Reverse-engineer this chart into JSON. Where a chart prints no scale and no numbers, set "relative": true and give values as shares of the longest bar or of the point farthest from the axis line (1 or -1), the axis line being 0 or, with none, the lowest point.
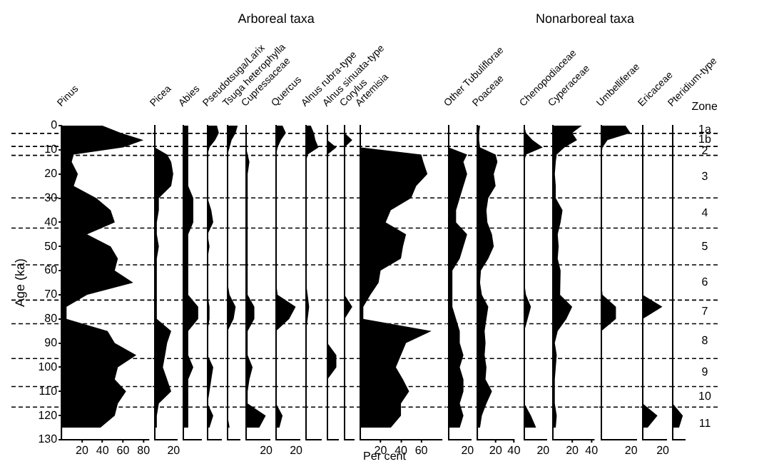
{
  "chart_data": [
    {
      "type": "area",
      "orientation": "horizontal",
      "title": "Pinus",
      "ylabel": "Age (ka)",
      "color": "#000000",
      "xlim": [
        0,
        85
      ],
      "xticks": [
        20,
        40,
        60,
        80
      ],
      "ylim": [
        130,
        0
      ],
      "yticks": [
        0,
        10,
        20,
        30,
        40,
        50,
        60,
        70,
        80,
        90,
        100,
        110,
        120,
        130
      ],
      "annotations": [
        "Arboreal taxa",
        "Nonarboreal taxa",
        "Zone"
      ],
      "ref_lines": [
        {
          "axis": "y",
          "value": 3.2,
          "line_style": "dashed"
        },
        {
          "axis": "y",
          "value": 8.6,
          "line_style": "dashed"
        },
        {
          "axis": "y",
          "value": 12.3,
          "line_style": "dashed"
        },
        {
          "axis": "y",
          "value": 29.9,
          "line_style": "dashed"
        },
        {
          "axis": "y",
          "value": 42.4,
          "line_style": "dashed"
        },
        {
          "axis": "y",
          "value": 57.6,
          "line_style": "dashed"
        },
        {
          "axis": "y",
          "value": 72.2,
          "line_style": "dashed"
        },
        {
          "axis": "y",
          "value": 82,
          "line_style": "dashed"
        },
        {
          "axis": "y",
          "value": 96.4,
          "line_style": "dashed"
        },
        {
          "axis": "y",
          "value": 108,
          "line_style": "dashed"
        },
        {
          "axis": "y",
          "value": 116.5,
          "line_style": "dashed"
        }
      ],
      "x": [
        0,
        3,
        6,
        9,
        12,
        15,
        20,
        25,
        30,
        35,
        40,
        45,
        50,
        55,
        60,
        65,
        70,
        75,
        80,
        85,
        90,
        95,
        100,
        105,
        110,
        115,
        120,
        125
      ],
      "values": [
        40,
        58,
        80,
        60,
        12,
        10,
        16,
        12,
        34,
        48,
        52,
        25,
        48,
        55,
        52,
        70,
        25,
        5,
        5,
        45,
        52,
        73,
        55,
        52,
        63,
        55,
        52,
        38
      ]
    },
    {
      "type": "area",
      "orientation": "horizontal",
      "title": "Picea",
      "color": "#000000",
      "relative": true,
      "ylim": [
        130,
        0
      ],
      "tick_labels": false,
      "annotations": [
        "20"
      ],
      "x": [
        0,
        3,
        6,
        9,
        12,
        15,
        20,
        25,
        30,
        35,
        40,
        45,
        50,
        55,
        60,
        65,
        70,
        75,
        80,
        85,
        90,
        95,
        100,
        105,
        110,
        115,
        120,
        125
      ],
      "values": [
        0,
        0,
        0,
        0,
        0.67,
        0.89,
        1,
        0.89,
        0.22,
        0.22,
        0.11,
        0.11,
        0.22,
        0.11,
        0.11,
        0.11,
        0.11,
        0.11,
        0.11,
        0.89,
        0.67,
        0.56,
        0.44,
        0.67,
        0.89,
        0.22,
        0.11,
        0.11
      ]
    },
    {
      "type": "area",
      "orientation": "horizontal",
      "title": "Abies",
      "color": "#000000",
      "relative": true,
      "ylim": [
        130,
        0
      ],
      "tick_labels": false,
      "x": [
        0,
        3,
        6,
        9,
        12,
        15,
        20,
        25,
        30,
        35,
        40,
        45,
        50,
        55,
        60,
        65,
        70,
        75,
        80,
        85,
        90,
        95,
        100,
        105,
        110,
        115,
        120,
        125
      ],
      "values": [
        0.33,
        0.33,
        0.33,
        0.33,
        0.33,
        0.33,
        0.33,
        0.33,
        0.67,
        0.67,
        0.67,
        0.33,
        0.33,
        0.33,
        0.33,
        0.33,
        0.33,
        1,
        1,
        0.33,
        0.33,
        0.33,
        0.67,
        0.33,
        0.33,
        0.33,
        0.33,
        0.33
      ]
    },
    {
      "type": "area",
      "orientation": "horizontal",
      "title": "Pseudotsuga/Larix",
      "color": "#000000",
      "relative": true,
      "ylim": [
        130,
        0
      ],
      "tick_labels": false,
      "x": [
        0,
        3,
        6,
        9,
        12,
        15,
        20,
        25,
        30,
        35,
        40,
        45,
        50,
        55,
        60,
        65,
        70,
        75,
        80,
        85,
        90,
        95,
        100,
        105,
        110,
        115,
        120,
        125
      ],
      "values": [
        0.83,
        1,
        0.67,
        0.17,
        0,
        0,
        0,
        0,
        0,
        0.33,
        0.5,
        0,
        0.17,
        0,
        0,
        0,
        0,
        0.17,
        0.17,
        0,
        0,
        0,
        0.5,
        0.33,
        0.17,
        0,
        0.5,
        0.17
      ]
    },
    {
      "type": "area",
      "orientation": "horizontal",
      "title": "Tsuga heterophylla",
      "color": "#000000",
      "relative": true,
      "ylim": [
        130,
        0
      ],
      "tick_labels": false,
      "x": [
        0,
        3,
        6,
        9,
        12,
        15,
        20,
        25,
        30,
        35,
        40,
        45,
        50,
        55,
        60,
        65,
        70,
        75,
        80,
        85,
        90,
        95,
        100,
        105,
        110,
        115,
        120,
        125
      ],
      "values": [
        1,
        0.8,
        0.4,
        0.2,
        0,
        0,
        0,
        0,
        0,
        0,
        0,
        0,
        0,
        0,
        0,
        0,
        0.2,
        0.8,
        0.6,
        0,
        0,
        0,
        0,
        0,
        0,
        0,
        0,
        0.2
      ]
    },
    {
      "type": "area",
      "orientation": "horizontal",
      "title": "Cupressaceae",
      "color": "#000000",
      "relative": true,
      "ylim": [
        130,
        0
      ],
      "tick_labels": false,
      "annotations": [
        "20"
      ],
      "x": [
        0,
        3,
        6,
        9,
        12,
        15,
        20,
        25,
        30,
        35,
        40,
        45,
        50,
        55,
        60,
        65,
        70,
        75,
        80,
        85,
        90,
        95,
        100,
        105,
        110,
        115,
        120,
        125
      ],
      "values": [
        0,
        0,
        0,
        0,
        0.08,
        0.17,
        0.08,
        0.08,
        0.08,
        0.08,
        0.08,
        0.08,
        0.08,
        0.08,
        0.08,
        0.08,
        0.08,
        0.42,
        0.42,
        0.08,
        0.08,
        0.08,
        0.33,
        0.17,
        0.08,
        0.08,
        1,
        0.67
      ]
    },
    {
      "type": "area",
      "orientation": "horizontal",
      "title": "Quercus",
      "color": "#000000",
      "relative": true,
      "ylim": [
        130,
        0
      ],
      "tick_labels": false,
      "annotations": [
        "20"
      ],
      "x": [
        0,
        3,
        6,
        9,
        12,
        15,
        20,
        25,
        30,
        35,
        40,
        45,
        50,
        55,
        60,
        65,
        70,
        75,
        80,
        85,
        90,
        95,
        100,
        105,
        110,
        115,
        120,
        125
      ],
      "values": [
        0.33,
        0.5,
        0.25,
        0.08,
        0,
        0,
        0,
        0,
        0,
        0,
        0,
        0,
        0,
        0,
        0,
        0,
        0.08,
        1,
        0.67,
        0,
        0,
        0,
        0,
        0,
        0,
        0,
        0.33,
        0.17
      ]
    },
    {
      "type": "area",
      "orientation": "horizontal",
      "title": "Alnus rubra-type",
      "color": "#000000",
      "relative": true,
      "ylim": [
        130,
        0
      ],
      "tick_labels": false,
      "x": [
        0,
        3,
        6,
        9,
        12,
        15,
        20,
        25,
        30,
        35,
        40,
        45,
        50,
        55,
        60,
        65,
        70,
        75,
        80,
        85,
        90,
        95,
        100,
        105,
        110,
        115,
        120,
        125
      ],
      "values": [
        0.38,
        0.63,
        0.75,
        1,
        0.13,
        0,
        0,
        0,
        0,
        0,
        0,
        0,
        0,
        0,
        0,
        0,
        0.13,
        0.25,
        0.13,
        0,
        0,
        0,
        0,
        0,
        0,
        0,
        0,
        0
      ]
    },
    {
      "type": "area",
      "orientation": "horizontal",
      "title": "Alnus sinuata-type",
      "color": "#000000",
      "relative": true,
      "ylim": [
        130,
        0
      ],
      "tick_labels": false,
      "x": [
        0,
        3,
        6,
        9,
        12,
        15,
        20,
        25,
        30,
        35,
        40,
        45,
        50,
        55,
        60,
        65,
        70,
        75,
        80,
        85,
        90,
        95,
        100,
        105,
        110,
        115,
        120,
        125
      ],
      "values": [
        0,
        0,
        0,
        1,
        0,
        0,
        0,
        0,
        0,
        0,
        0,
        0,
        0,
        0,
        0,
        0,
        0,
        0,
        0,
        0,
        0,
        1,
        1,
        0,
        0,
        0,
        0,
        0
      ]
    },
    {
      "type": "area",
      "orientation": "horizontal",
      "title": "Corylus",
      "color": "#000000",
      "relative": true,
      "ylim": [
        130,
        0
      ],
      "tick_labels": false,
      "x": [
        0,
        3,
        6,
        9,
        12,
        15,
        20,
        25,
        30,
        35,
        40,
        45,
        50,
        55,
        60,
        65,
        70,
        75,
        80,
        85,
        90,
        95,
        100,
        105,
        110,
        115,
        120,
        125
      ],
      "values": [
        0,
        0,
        1,
        0,
        0,
        0,
        0,
        0,
        0,
        0,
        0,
        0,
        0,
        0,
        0,
        0,
        0,
        1,
        0,
        0,
        0,
        0,
        0,
        0,
        0,
        0,
        0,
        0
      ]
    },
    {
      "type": "area",
      "orientation": "horizontal",
      "title": "Artemisia",
      "xlabel": "Per cent",
      "color": "#000000",
      "xlim": [
        0,
        80
      ],
      "xticks": [
        20,
        40,
        60
      ],
      "ylim": [
        130,
        0
      ],
      "tick_labels": "x",
      "x": [
        0,
        3,
        6,
        9,
        12,
        15,
        20,
        25,
        30,
        35,
        40,
        45,
        50,
        55,
        60,
        65,
        70,
        75,
        80,
        85,
        90,
        95,
        100,
        105,
        110,
        115,
        120,
        125
      ],
      "values": [
        0,
        0,
        0,
        0,
        60,
        62,
        66,
        55,
        50,
        30,
        25,
        45,
        42,
        40,
        20,
        18,
        10,
        3,
        3,
        70,
        45,
        40,
        35,
        42,
        48,
        40,
        40,
        30
      ]
    },
    {
      "type": "area",
      "orientation": "horizontal",
      "title": "Other Tubuliflorae",
      "color": "#000000",
      "relative": true,
      "ylim": [
        130,
        0
      ],
      "tick_labels": false,
      "annotations": [
        "20"
      ],
      "x": [
        0,
        3,
        6,
        9,
        12,
        15,
        20,
        25,
        30,
        35,
        40,
        45,
        50,
        55,
        60,
        65,
        70,
        75,
        80,
        85,
        90,
        95,
        100,
        105,
        110,
        115,
        120,
        125
      ],
      "values": [
        0,
        0,
        0,
        0,
        1,
        0.8,
        1,
        0.8,
        0.6,
        0.4,
        0.4,
        1,
        0.8,
        0.6,
        0.2,
        0.2,
        0.2,
        0.2,
        0.4,
        0.6,
        0.6,
        0.8,
        0.6,
        0.8,
        0.8,
        0.6,
        0.8,
        0.6
      ]
    },
    {
      "type": "area",
      "orientation": "horizontal",
      "title": "Poaceae",
      "color": "#000000",
      "xlim": [
        0,
        40
      ],
      "xticks": [
        20,
        40
      ],
      "ylim": [
        130,
        0
      ],
      "tick_labels": "x",
      "x": [
        0,
        3,
        6,
        9,
        12,
        15,
        20,
        25,
        30,
        35,
        40,
        45,
        50,
        55,
        60,
        65,
        70,
        75,
        80,
        85,
        90,
        95,
        100,
        105,
        110,
        115,
        120,
        125
      ],
      "values": [
        3,
        2,
        2,
        3,
        20,
        22,
        18,
        20,
        12,
        10,
        11,
        16,
        18,
        12,
        4,
        3,
        5,
        12,
        10,
        8,
        9,
        8,
        10,
        9,
        16,
        10,
        5,
        3
      ]
    },
    {
      "type": "area",
      "orientation": "horizontal",
      "title": "Chenopodiaceae",
      "color": "#000000",
      "relative": true,
      "ylim": [
        130,
        0
      ],
      "tick_labels": false,
      "annotations": [
        "20"
      ],
      "x": [
        0,
        3,
        6,
        9,
        12,
        15,
        20,
        25,
        30,
        35,
        40,
        45,
        50,
        55,
        60,
        65,
        70,
        75,
        80,
        85,
        90,
        95,
        100,
        105,
        110,
        115,
        120,
        125
      ],
      "values": [
        0,
        0.09,
        0.45,
        1,
        0.09,
        0,
        0,
        0,
        0,
        0,
        0,
        0,
        0,
        0,
        0,
        0,
        0.09,
        0.36,
        0.18,
        0,
        0,
        0,
        0,
        0,
        0,
        0,
        0.36,
        0.64
      ]
    },
    {
      "type": "area",
      "orientation": "horizontal",
      "title": "Cyperaceae",
      "color": "#000000",
      "xlim": [
        0,
        42
      ],
      "xticks": [
        20,
        40
      ],
      "ylim": [
        130,
        0
      ],
      "tick_labels": "x",
      "x": [
        0,
        3,
        6,
        9,
        12,
        15,
        20,
        25,
        30,
        35,
        40,
        45,
        50,
        55,
        60,
        65,
        70,
        75,
        80,
        85,
        90,
        95,
        100,
        105,
        110,
        115,
        120,
        125
      ],
      "values": [
        30,
        20,
        25,
        12,
        4,
        3,
        2,
        3,
        3,
        10,
        8,
        5,
        6,
        5,
        8,
        7,
        8,
        20,
        14,
        5,
        2,
        4,
        3,
        2,
        2,
        2,
        4,
        3
      ]
    },
    {
      "type": "area",
      "orientation": "horizontal",
      "title": "Umbelliferae",
      "color": "#000000",
      "relative": true,
      "ylim": [
        130,
        0
      ],
      "tick_labels": false,
      "annotations": [
        "20"
      ],
      "x": [
        0,
        3,
        6,
        9,
        12,
        15,
        20,
        25,
        30,
        35,
        40,
        45,
        50,
        55,
        60,
        65,
        70,
        75,
        80,
        85,
        90,
        95,
        100,
        105,
        110,
        115,
        120,
        125
      ],
      "values": [
        0.83,
        1,
        0.21,
        0.04,
        0,
        0,
        0,
        0,
        0,
        0,
        0,
        0,
        0,
        0,
        0,
        0,
        0.04,
        0.5,
        0.5,
        0,
        0,
        0,
        0,
        0,
        0,
        0,
        0,
        0
      ]
    },
    {
      "type": "area",
      "orientation": "horizontal",
      "title": "Ericaceae",
      "color": "#000000",
      "relative": true,
      "ylim": [
        130,
        0
      ],
      "tick_labels": false,
      "annotations": [
        "20"
      ],
      "x": [
        0,
        3,
        6,
        9,
        12,
        15,
        20,
        25,
        30,
        35,
        40,
        45,
        50,
        55,
        60,
        65,
        70,
        75,
        80,
        85,
        90,
        95,
        100,
        105,
        110,
        115,
        120,
        125
      ],
      "values": [
        0,
        0,
        0,
        0,
        0,
        0,
        0,
        0,
        0,
        0,
        0,
        0,
        0,
        0,
        0,
        0,
        0,
        1,
        0,
        0,
        0,
        0,
        0,
        0,
        0,
        0,
        0.75,
        0.25
      ]
    },
    {
      "type": "area",
      "orientation": "horizontal",
      "title": "Pteridium-type",
      "color": "#000000",
      "relative": true,
      "ylim": [
        130,
        0
      ],
      "tick_labels": false,
      "annotations": [
        "1a",
        "1b",
        "2",
        "3",
        "4",
        "5",
        "6",
        "7",
        "8",
        "9",
        "10",
        "11"
      ],
      "x": [
        0,
        3,
        6,
        9,
        12,
        15,
        20,
        25,
        30,
        35,
        40,
        45,
        50,
        55,
        60,
        65,
        70,
        75,
        80,
        85,
        90,
        95,
        100,
        105,
        110,
        115,
        120,
        125
      ],
      "values": [
        0,
        0,
        0,
        0,
        0,
        0,
        0,
        0,
        0,
        0,
        0,
        0,
        0,
        0,
        0,
        0,
        0,
        0,
        0,
        0,
        0,
        0,
        0,
        0,
        0,
        0,
        1,
        0.63
      ]
    }
  ]
}
